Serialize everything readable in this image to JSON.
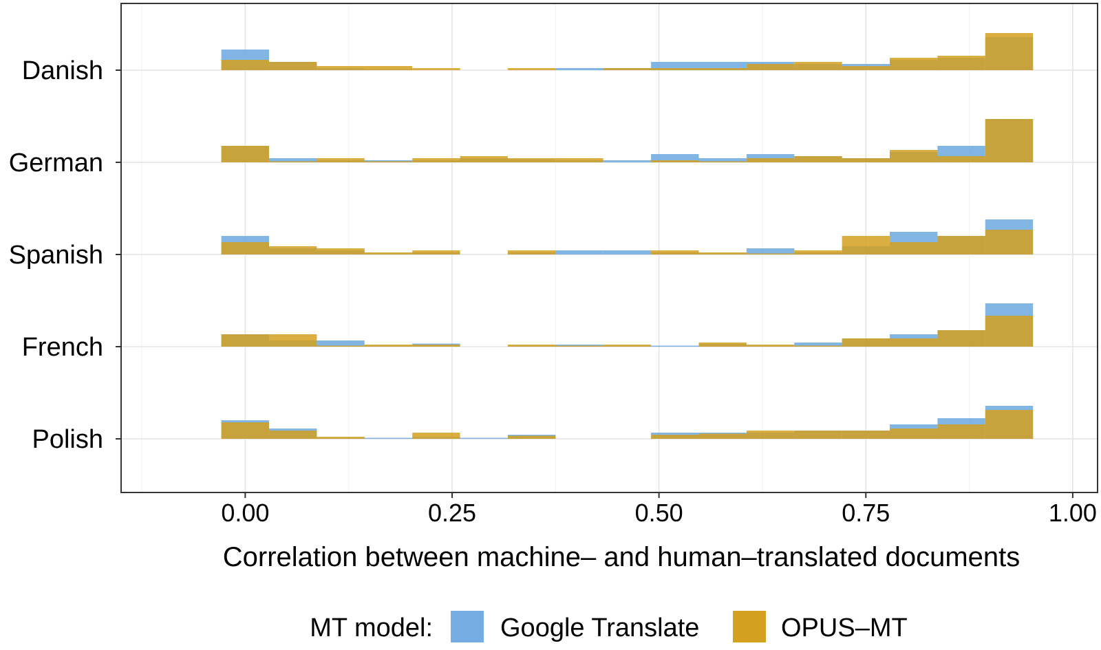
{
  "chart_data": {
    "type": "histogram",
    "title": "",
    "xlabel": "Correlation between machine– and human–translated documents",
    "ylabel": "",
    "xlim": [
      -0.15,
      1.03
    ],
    "x_ticks": [
      0,
      0.25,
      0.5,
      0.75,
      1
    ],
    "x_tick_labels": [
      "0.00",
      "0.25",
      "0.50",
      "0.75",
      "1.00"
    ],
    "grid": true,
    "bin_width": 0.0577,
    "bin_start": -0.0289,
    "bin_count": 17,
    "categories": [
      "Danish",
      "German",
      "Spanish",
      "French",
      "Polish"
    ],
    "legend": {
      "title": "MT model:",
      "position": "bottom",
      "entries": [
        "Google Translate",
        "OPUS–MT"
      ]
    },
    "series": [
      {
        "name": "Google Translate",
        "color": "#74ade2",
        "rows": {
          "Danish": [
            1.0,
            0.4,
            0.1,
            0.05,
            0,
            0,
            0,
            0.1,
            0.1,
            0.4,
            0.4,
            0.4,
            0.3,
            0.3,
            0.5,
            0.6,
            1.6
          ],
          "German": [
            0.8,
            0.2,
            0.1,
            0.1,
            0.1,
            0.2,
            0.15,
            0.1,
            0.1,
            0.4,
            0.2,
            0.4,
            0.3,
            0.2,
            0.5,
            0.8,
            2.1
          ],
          "Spanish": [
            0.9,
            0.3,
            0.2,
            0.05,
            0.1,
            0,
            0.1,
            0.2,
            0.2,
            0.1,
            0.05,
            0.3,
            0.1,
            0.4,
            1.1,
            0.9,
            1.7
          ],
          "French": [
            0.6,
            0.3,
            0.3,
            0.05,
            0.15,
            0,
            0.05,
            0.1,
            0.05,
            0.05,
            0.15,
            0.05,
            0.2,
            0.4,
            0.6,
            0.8,
            2.1
          ],
          "Polish": [
            0.9,
            0.5,
            0.05,
            0.05,
            0.1,
            0.05,
            0.2,
            0,
            0,
            0.3,
            0.3,
            0.3,
            0.4,
            0.4,
            0.7,
            1.0,
            1.6
          ]
        }
      },
      {
        "name": "OPUS–MT",
        "color": "#d4a020",
        "rows": {
          "Danish": [
            0.5,
            0.4,
            0.2,
            0.2,
            0.1,
            0,
            0.1,
            0,
            0.1,
            0.1,
            0.1,
            0.3,
            0.4,
            0.2,
            0.6,
            0.7,
            1.8
          ],
          "German": [
            0.8,
            0.05,
            0.2,
            0.05,
            0.2,
            0.3,
            0.2,
            0.2,
            0,
            0.1,
            0.05,
            0.2,
            0.3,
            0.2,
            0.6,
            0.3,
            2.1
          ],
          "Spanish": [
            0.6,
            0.4,
            0.3,
            0.1,
            0.2,
            0,
            0.2,
            0,
            0,
            0.2,
            0.1,
            0.05,
            0.2,
            0.9,
            0.6,
            0.9,
            1.2
          ],
          "French": [
            0.6,
            0.6,
            0.05,
            0.1,
            0.1,
            0,
            0.1,
            0.05,
            0.1,
            0,
            0.2,
            0.1,
            0.05,
            0.4,
            0.4,
            0.8,
            1.5
          ],
          "Polish": [
            0.8,
            0.4,
            0.1,
            0,
            0.3,
            0,
            0.15,
            0,
            0,
            0.2,
            0.25,
            0.4,
            0.4,
            0.4,
            0.5,
            0.7,
            1.4
          ]
        }
      }
    ]
  }
}
